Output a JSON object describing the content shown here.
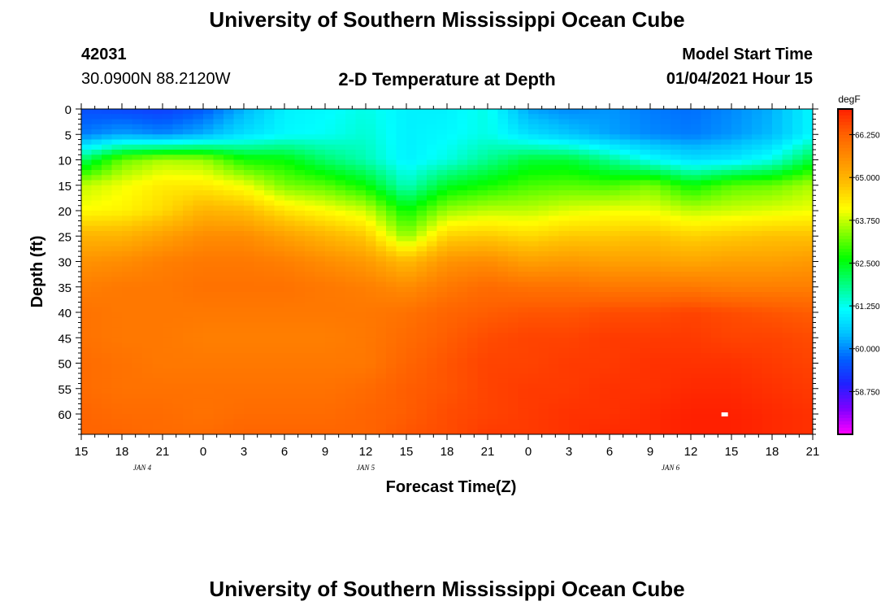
{
  "page": {
    "title_top": "University of Southern Mississippi Ocean Cube",
    "title_bottom": "University of Southern Mississippi Ocean Cube",
    "station_id": "42031",
    "location": "30.0900N 88.2120W",
    "plot_title": "2-D Temperature at Depth",
    "model_start_label": "Model Start Time",
    "model_start_value": "01/04/2021 Hour 15"
  },
  "colors": {
    "palette": [
      "#ff00ff",
      "#8000ff",
      "#2020ff",
      "#0060ff",
      "#00c0ff",
      "#00ffff",
      "#00ff80",
      "#00ff00",
      "#80ff00",
      "#ffff00",
      "#ffc000",
      "#ff9000",
      "#ff6000",
      "#ff2000"
    ],
    "missing_marker": "#ffffff"
  },
  "chart_data": {
    "type": "heatmap",
    "title": "2-D Temperature at Depth",
    "xlabel": "Forecast Time(Z)",
    "ylabel": "Depth (ft)",
    "x_ticks": [
      "15",
      "18",
      "21",
      "0",
      "3",
      "6",
      "9",
      "12",
      "15",
      "18",
      "21",
      "0",
      "3",
      "6",
      "9",
      "12",
      "15",
      "18",
      "21"
    ],
    "x_range_hours": [
      0,
      54
    ],
    "date_labels": [
      {
        "text": "JAN 4",
        "hour": 4.5
      },
      {
        "text": "JAN 5",
        "hour": 21
      },
      {
        "text": "JAN 6",
        "hour": 43.5
      }
    ],
    "y_ticks": [
      0,
      5,
      10,
      15,
      20,
      25,
      30,
      35,
      40,
      45,
      50,
      55,
      60
    ],
    "y_range": [
      0,
      64
    ],
    "colorbar": {
      "unit": "degF",
      "min": 57.5,
      "max": 67.0,
      "tick_values": [
        58.75,
        60.0,
        61.25,
        62.5,
        63.75,
        65.0,
        66.25
      ],
      "tick_labels": [
        "58.750",
        "60.000",
        "61.250",
        "62.500",
        "63.750",
        "65.000",
        "66.250"
      ]
    },
    "grid_hours": [
      0,
      3,
      6,
      9,
      12,
      15,
      18,
      21,
      24,
      27,
      30,
      33,
      36,
      39,
      42,
      45,
      48,
      51,
      54
    ],
    "grid_depths": [
      0,
      5,
      10,
      15,
      20,
      25,
      30,
      35,
      40,
      45,
      50,
      55,
      60,
      64
    ],
    "temperature_degF": [
      [
        59.5,
        59.4,
        59.3,
        59.6,
        60.3,
        61.0,
        61.1,
        61.3,
        61.0,
        61.0,
        61.3,
        60.2,
        60.0,
        60.1,
        59.9,
        59.8,
        60.0,
        60.3,
        61.1
      ],
      [
        59.9,
        60.2,
        60.0,
        60.3,
        60.8,
        61.1,
        61.2,
        61.4,
        61.0,
        61.1,
        61.3,
        60.8,
        60.5,
        60.2,
        60.0,
        59.9,
        60.1,
        60.4,
        61.1
      ],
      [
        62.0,
        63.2,
        63.6,
        63.5,
        62.7,
        62.6,
        62.0,
        61.6,
        61.0,
        61.3,
        61.8,
        62.3,
        62.3,
        61.8,
        61.2,
        60.8,
        60.9,
        61.3,
        62.3
      ],
      [
        63.7,
        64.0,
        64.3,
        64.3,
        64.0,
        63.3,
        63.1,
        62.6,
        61.5,
        62.4,
        62.7,
        63.0,
        63.1,
        63.0,
        63.3,
        62.6,
        63.1,
        63.2,
        63.6
      ],
      [
        64.1,
        64.2,
        64.5,
        65.0,
        64.9,
        64.4,
        64.1,
        63.8,
        62.6,
        63.5,
        63.7,
        63.7,
        63.9,
        64.0,
        64.0,
        63.7,
        63.8,
        63.9,
        64.0
      ],
      [
        65.0,
        65.0,
        65.3,
        65.6,
        65.6,
        65.3,
        65.0,
        64.7,
        63.4,
        64.6,
        64.7,
        64.5,
        64.7,
        64.7,
        64.8,
        64.6,
        64.7,
        64.8,
        64.8
      ],
      [
        65.5,
        65.6,
        65.8,
        65.9,
        65.9,
        65.8,
        65.6,
        65.4,
        64.9,
        65.5,
        65.6,
        65.3,
        65.4,
        65.3,
        65.3,
        65.2,
        65.3,
        65.3,
        65.4
      ],
      [
        65.8,
        65.9,
        65.9,
        66.0,
        66.0,
        66.0,
        65.9,
        65.8,
        65.6,
        65.9,
        66.1,
        66.0,
        66.0,
        65.9,
        65.9,
        65.9,
        65.8,
        65.8,
        65.8
      ],
      [
        66.0,
        65.9,
        65.9,
        65.9,
        65.9,
        65.9,
        65.9,
        65.9,
        66.0,
        66.2,
        66.3,
        66.4,
        66.4,
        66.5,
        66.5,
        66.6,
        66.5,
        66.4,
        66.3
      ],
      [
        66.0,
        65.9,
        65.9,
        65.8,
        65.8,
        65.8,
        65.8,
        65.9,
        66.1,
        66.3,
        66.5,
        66.6,
        66.6,
        66.7,
        66.7,
        66.7,
        66.6,
        66.6,
        66.5
      ],
      [
        66.1,
        66.0,
        65.9,
        65.9,
        65.9,
        65.9,
        65.9,
        65.9,
        66.2,
        66.4,
        66.6,
        66.6,
        66.7,
        66.7,
        66.8,
        66.8,
        66.8,
        66.7,
        66.6
      ],
      [
        66.1,
        66.0,
        66.0,
        66.0,
        66.0,
        66.0,
        66.0,
        66.1,
        66.3,
        66.4,
        66.6,
        66.7,
        66.7,
        66.8,
        66.8,
        66.9,
        66.9,
        66.8,
        66.7
      ],
      [
        66.2,
        66.1,
        66.1,
        66.0,
        66.1,
        66.1,
        66.1,
        66.2,
        66.3,
        66.5,
        66.6,
        66.7,
        66.8,
        66.8,
        66.9,
        67.0,
        67.0,
        66.9,
        66.8
      ],
      [
        66.2,
        66.2,
        66.1,
        66.1,
        66.2,
        66.2,
        66.2,
        66.2,
        66.4,
        66.5,
        66.7,
        66.7,
        66.8,
        66.9,
        66.9,
        67.0,
        67.0,
        66.9,
        66.8
      ]
    ],
    "missing_cell": {
      "hour": 47.5,
      "depth": 60
    }
  }
}
